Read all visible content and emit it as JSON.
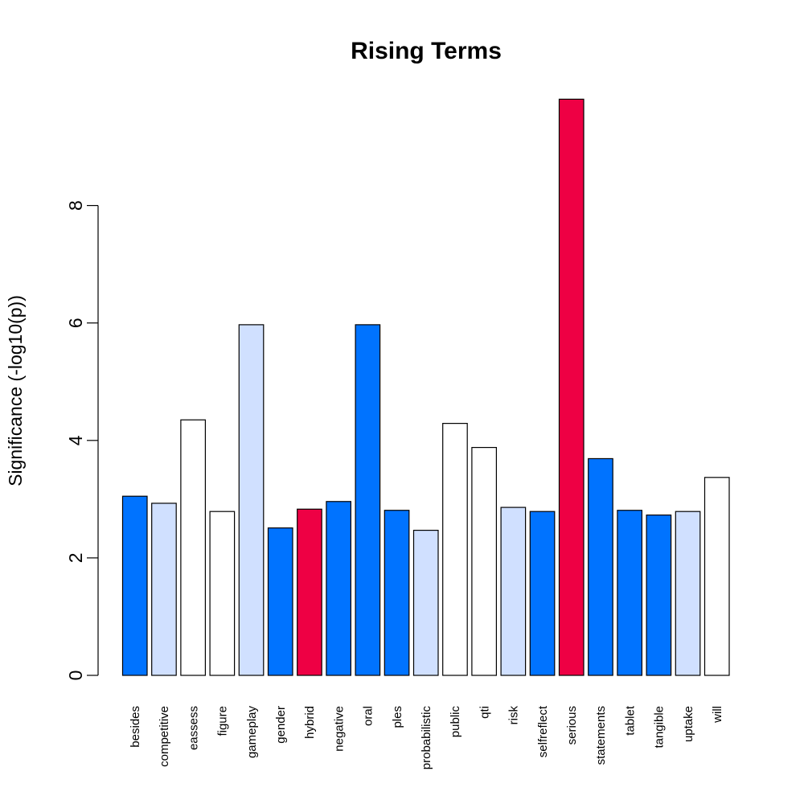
{
  "chart_data": {
    "type": "bar",
    "title": "Rising Terms",
    "xlabel": "",
    "ylabel": "Significance (-log10(p))",
    "ylim": [
      0,
      9.8
    ],
    "yticks": [
      0,
      2,
      4,
      6,
      8
    ],
    "grid": false,
    "legend": "none",
    "categories": [
      "besides",
      "competitive",
      "eassess",
      "figure",
      "gameplay",
      "gender",
      "hybrid",
      "negative",
      "oral",
      "ples",
      "probabilistic",
      "public",
      "qti",
      "risk",
      "selfreflect",
      "serious",
      "statements",
      "tablet",
      "tangible",
      "uptake",
      "will"
    ],
    "values": [
      3.05,
      2.93,
      4.35,
      2.79,
      5.97,
      2.51,
      2.83,
      2.96,
      5.97,
      2.81,
      2.47,
      4.29,
      3.88,
      2.86,
      2.79,
      9.81,
      3.69,
      2.81,
      2.73,
      2.79,
      3.37
    ],
    "bar_colors": [
      "#0073FF",
      "#D0E0FF",
      "#FFFFFF",
      "#FFFFFF",
      "#D0E0FF",
      "#0073FF",
      "#EE0044",
      "#0073FF",
      "#0073FF",
      "#0073FF",
      "#D0E0FF",
      "#FFFFFF",
      "#FFFFFF",
      "#D0E0FF",
      "#0073FF",
      "#EE0044",
      "#0073FF",
      "#0073FF",
      "#0073FF",
      "#D0E0FF",
      "#FFFFFF"
    ]
  }
}
